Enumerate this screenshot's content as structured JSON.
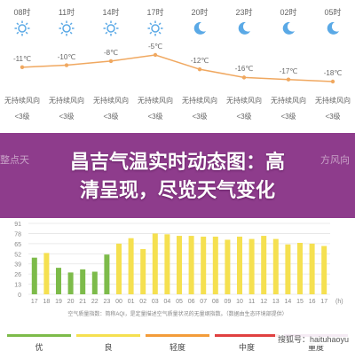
{
  "forecast": {
    "hours": [
      {
        "time": "08时",
        "icon": "sun-icon",
        "temp": "-11℃",
        "t": -11,
        "wind": "无持续风向",
        "level": "<3级"
      },
      {
        "time": "11时",
        "icon": "sun-icon",
        "temp": "-10℃",
        "t": -10,
        "wind": "无持续风向",
        "level": "<3级"
      },
      {
        "time": "14时",
        "icon": "sun-icon",
        "temp": "-8℃",
        "t": -8,
        "wind": "无持续风向",
        "level": "<3级"
      },
      {
        "time": "17时",
        "icon": "sun-icon",
        "temp": "-5℃",
        "t": -5,
        "wind": "无持续风向",
        "level": "<3级"
      },
      {
        "time": "20时",
        "icon": "moon-icon",
        "temp": "-12℃",
        "t": -12,
        "wind": "无持续风向",
        "level": "<3级"
      },
      {
        "time": "23时",
        "icon": "moon-icon",
        "temp": "-16℃",
        "t": -16,
        "wind": "无持续风向",
        "level": "<3级"
      },
      {
        "time": "02时",
        "icon": "moon-icon",
        "temp": "-17℃",
        "t": -17,
        "wind": "无持续风向",
        "level": "<3级"
      },
      {
        "time": "05时",
        "icon": "moon-icon",
        "temp": "-18℃",
        "t": -18,
        "wind": "无持续风向",
        "level": "<3级"
      }
    ],
    "line_color": "#f0a860",
    "icon_color": "#5aa9e6"
  },
  "banner": {
    "bg_left": "整点天",
    "bg_right": "方风向",
    "title_line1": "昌吉气温实时动态图：高",
    "title_line2": "清呈现，尽览天气变化",
    "color": "#8e3c8c"
  },
  "aqi": {
    "caption": "空气质量指数：简称AQI，是定量描述空气质量状况的无量纲指数。（数据由生态环境部提供）",
    "colors": {
      "good": "#7dbb4a",
      "moderate": "#f5e050"
    },
    "chart_data": {
      "type": "bar",
      "categories": [
        "17",
        "18",
        "19",
        "20",
        "21",
        "22",
        "23",
        "00",
        "01",
        "02",
        "03",
        "04",
        "05",
        "06",
        "07",
        "08",
        "09",
        "10",
        "11",
        "12",
        "13",
        "14",
        "15",
        "16",
        "17"
      ],
      "values": [
        47,
        53,
        34,
        28,
        32,
        29,
        51,
        65,
        72,
        58,
        78,
        77,
        75,
        75,
        74,
        74,
        70,
        74,
        71,
        75,
        71,
        64,
        66,
        65,
        62
      ],
      "levels": [
        "good",
        "moderate",
        "good",
        "good",
        "good",
        "good",
        "good",
        "moderate",
        "moderate",
        "moderate",
        "moderate",
        "moderate",
        "moderate",
        "moderate",
        "moderate",
        "moderate",
        "moderate",
        "moderate",
        "moderate",
        "moderate",
        "moderate",
        "moderate",
        "moderate",
        "moderate",
        "moderate"
      ],
      "y_ticks": [
        "91",
        "78",
        "65",
        "52",
        "39",
        "26",
        "13",
        "0"
      ],
      "ylim": [
        0,
        91
      ],
      "x_unit": "(h)",
      "grid": true
    },
    "legend": [
      {
        "label": "优",
        "color": "#7dbb4a"
      },
      {
        "label": "良",
        "color": "#f5e050"
      },
      {
        "label": "轻度",
        "color": "#f39c3a"
      },
      {
        "label": "中度",
        "color": "#e04040"
      },
      {
        "label": "重度",
        "color": "#9b3a8c"
      }
    ]
  },
  "watermark": "搜狐号：haituhaoyu"
}
